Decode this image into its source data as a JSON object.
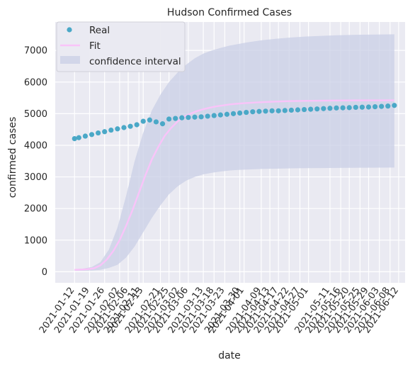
{
  "chart_data": {
    "type": "scatter",
    "title": "Hudson Confirmed Cases",
    "xlabel": "date",
    "ylabel": "confirmed cases",
    "ylim": [
      -350,
      7900
    ],
    "xlim": [
      "2021-01-03",
      "2021-06-15"
    ],
    "y_ticks": [
      0,
      1000,
      2000,
      3000,
      4000,
      5000,
      6000,
      7000
    ],
    "x_ticks": [
      "2021-01-12",
      "2021-01-19",
      "2021-01-26",
      "2021-02-02",
      "2021-02-06",
      "2021-02-11",
      "2021-02-21",
      "2021-02-13",
      "2021-02-25",
      "2021-03-02",
      "2021-03-06",
      "2021-03-13",
      "2021-03-18",
      "2021-03-23",
      "2021-03-30",
      "2021-04-01",
      "2021-04-09",
      "2021-04-13",
      "2021-04-17",
      "2021-04-22",
      "2021-04-27",
      "2021-05-01",
      "2021-05-11",
      "2021-05-16",
      "2021-05-20",
      "2021-05-25",
      "2021-05-29",
      "2021-06-03",
      "2021-06-08",
      "2021-06-12"
    ],
    "grid": true,
    "legend_position": "top-left",
    "colors": {
      "background": "#eaeaf2",
      "grid": "#ffffff",
      "real": "#4aa8c7",
      "fit": "#f9c4f9",
      "band": "#c9cfe6"
    },
    "series": [
      {
        "name": "Real",
        "kind": "scatter",
        "x": [
          "2021-01-12",
          "2021-01-14",
          "2021-01-17",
          "2021-01-20",
          "2021-01-23",
          "2021-01-26",
          "2021-01-29",
          "2021-02-01",
          "2021-02-04",
          "2021-02-07",
          "2021-02-10",
          "2021-02-13",
          "2021-02-16",
          "2021-02-19",
          "2021-02-22",
          "2021-02-25",
          "2021-02-28",
          "2021-03-03",
          "2021-03-06",
          "2021-03-09",
          "2021-03-12",
          "2021-03-15",
          "2021-03-18",
          "2021-03-21",
          "2021-03-24",
          "2021-03-27",
          "2021-03-30",
          "2021-04-02",
          "2021-04-05",
          "2021-04-08",
          "2021-04-11",
          "2021-04-14",
          "2021-04-17",
          "2021-04-20",
          "2021-04-23",
          "2021-04-26",
          "2021-04-29",
          "2021-05-02",
          "2021-05-05",
          "2021-05-08",
          "2021-05-11",
          "2021-05-14",
          "2021-05-17",
          "2021-05-20",
          "2021-05-23",
          "2021-05-26",
          "2021-05-29",
          "2021-06-01",
          "2021-06-04",
          "2021-06-07",
          "2021-06-10"
        ],
        "values": [
          4210,
          4240,
          4290,
          4340,
          4390,
          4430,
          4480,
          4520,
          4560,
          4600,
          4650,
          4760,
          4800,
          4740,
          4680,
          4830,
          4850,
          4870,
          4880,
          4890,
          4900,
          4920,
          4940,
          4960,
          4980,
          5000,
          5020,
          5040,
          5060,
          5070,
          5080,
          5090,
          5090,
          5100,
          5110,
          5120,
          5130,
          5140,
          5150,
          5160,
          5170,
          5180,
          5185,
          5190,
          5200,
          5205,
          5210,
          5220,
          5230,
          5240,
          5260
        ]
      },
      {
        "name": "Fit",
        "kind": "line",
        "x": [
          "2021-01-12",
          "2021-01-15",
          "2021-01-18",
          "2021-01-21",
          "2021-01-24",
          "2021-01-27",
          "2021-01-30",
          "2021-02-02",
          "2021-02-05",
          "2021-02-08",
          "2021-02-11",
          "2021-02-14",
          "2021-02-17",
          "2021-02-20",
          "2021-02-23",
          "2021-02-26",
          "2021-03-01",
          "2021-03-04",
          "2021-03-07",
          "2021-03-10",
          "2021-03-13",
          "2021-03-16",
          "2021-03-19",
          "2021-03-22",
          "2021-03-25",
          "2021-03-28",
          "2021-04-01",
          "2021-04-08",
          "2021-04-15",
          "2021-04-22",
          "2021-04-29",
          "2021-05-06",
          "2021-05-13",
          "2021-05-20",
          "2021-05-27",
          "2021-06-03",
          "2021-06-10"
        ],
        "values": [
          60,
          70,
          80,
          110,
          200,
          380,
          650,
          1000,
          1450,
          1950,
          2500,
          3050,
          3550,
          3950,
          4300,
          4550,
          4750,
          4900,
          5000,
          5080,
          5140,
          5190,
          5230,
          5260,
          5290,
          5310,
          5330,
          5360,
          5380,
          5395,
          5405,
          5410,
          5415,
          5418,
          5420,
          5421,
          5422
        ]
      },
      {
        "name": "confidence interval",
        "kind": "band",
        "x": [
          "2021-01-12",
          "2021-01-16",
          "2021-01-20",
          "2021-01-24",
          "2021-01-28",
          "2021-02-01",
          "2021-02-05",
          "2021-02-09",
          "2021-02-13",
          "2021-02-17",
          "2021-02-21",
          "2021-02-25",
          "2021-03-01",
          "2021-03-05",
          "2021-03-09",
          "2021-03-13",
          "2021-03-17",
          "2021-03-21",
          "2021-03-25",
          "2021-03-29",
          "2021-04-02",
          "2021-04-09",
          "2021-04-16",
          "2021-04-23",
          "2021-04-30",
          "2021-05-07",
          "2021-05-14",
          "2021-05-21",
          "2021-05-28",
          "2021-06-04",
          "2021-06-10"
        ],
        "lower": [
          30,
          35,
          40,
          60,
          120,
          220,
          450,
          800,
          1250,
          1700,
          2100,
          2450,
          2700,
          2880,
          3000,
          3080,
          3130,
          3170,
          3200,
          3220,
          3230,
          3250,
          3260,
          3270,
          3275,
          3280,
          3285,
          3288,
          3290,
          3292,
          3295
        ],
        "upper": [
          80,
          100,
          150,
          300,
          700,
          1400,
          2400,
          3500,
          4400,
          5100,
          5600,
          6000,
          6300,
          6550,
          6750,
          6900,
          7000,
          7080,
          7150,
          7200,
          7250,
          7320,
          7370,
          7410,
          7440,
          7460,
          7480,
          7490,
          7500,
          7505,
          7510
        ]
      }
    ]
  }
}
